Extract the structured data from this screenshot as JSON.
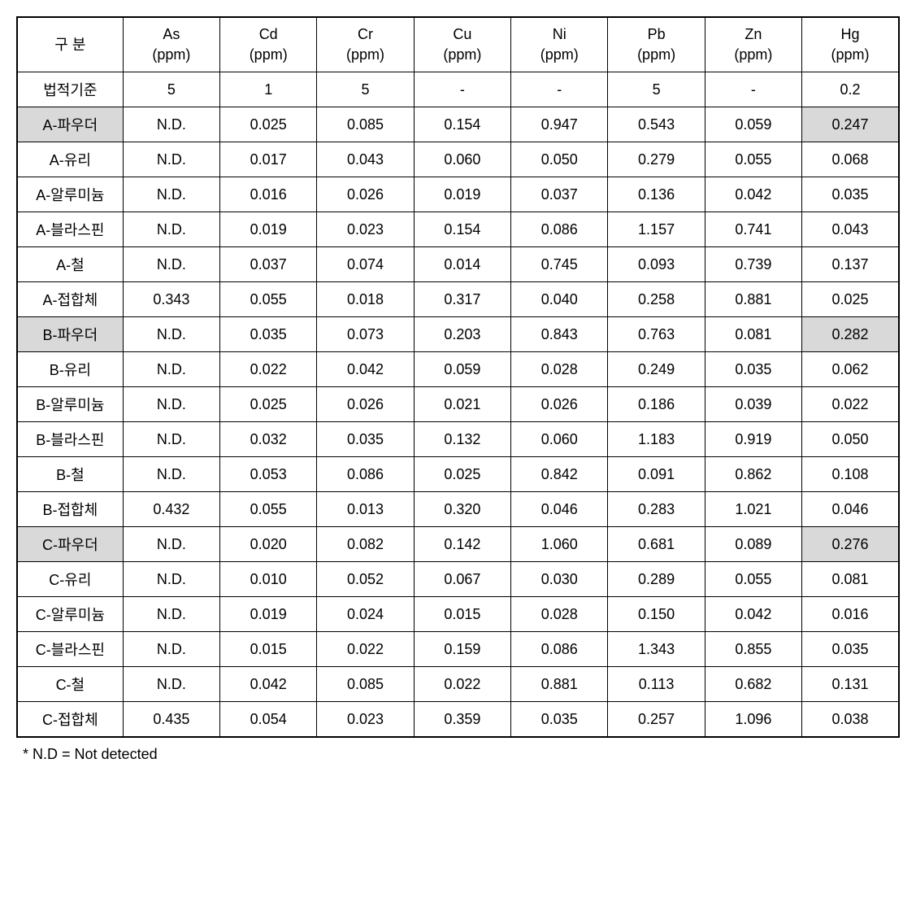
{
  "table": {
    "columns": [
      {
        "key": "label",
        "line1": "구  분",
        "line2": ""
      },
      {
        "key": "as",
        "line1": "As",
        "line2": "(ppm)"
      },
      {
        "key": "cd",
        "line1": "Cd",
        "line2": "(ppm)"
      },
      {
        "key": "cr",
        "line1": "Cr",
        "line2": "(ppm)"
      },
      {
        "key": "cu",
        "line1": "Cu",
        "line2": "(ppm)"
      },
      {
        "key": "ni",
        "line1": "Ni",
        "line2": "(ppm)"
      },
      {
        "key": "pb",
        "line1": "Pb",
        "line2": "(ppm)"
      },
      {
        "key": "zn",
        "line1": "Zn",
        "line2": "(ppm)"
      },
      {
        "key": "hg",
        "line1": "Hg",
        "line2": "(ppm)"
      }
    ],
    "rows": [
      {
        "highlight": [],
        "cells": [
          "법적기준",
          "5",
          "1",
          "5",
          "-",
          "-",
          "5",
          "-",
          "0.2"
        ]
      },
      {
        "highlight": [
          0,
          8
        ],
        "cells": [
          "A-파우더",
          "N.D.",
          "0.025",
          "0.085",
          "0.154",
          "0.947",
          "0.543",
          "0.059",
          "0.247"
        ]
      },
      {
        "highlight": [],
        "cells": [
          "A-유리",
          "N.D.",
          "0.017",
          "0.043",
          "0.060",
          "0.050",
          "0.279",
          "0.055",
          "0.068"
        ]
      },
      {
        "highlight": [],
        "cells": [
          "A-알루미늄",
          "N.D.",
          "0.016",
          "0.026",
          "0.019",
          "0.037",
          "0.136",
          "0.042",
          "0.035"
        ]
      },
      {
        "highlight": [],
        "cells": [
          "A-블라스핀",
          "N.D.",
          "0.019",
          "0.023",
          "0.154",
          "0.086",
          "1.157",
          "0.741",
          "0.043"
        ]
      },
      {
        "highlight": [],
        "cells": [
          "A-철",
          "N.D.",
          "0.037",
          "0.074",
          "0.014",
          "0.745",
          "0.093",
          "0.739",
          "0.137"
        ]
      },
      {
        "highlight": [],
        "cells": [
          "A-접합체",
          "0.343",
          "0.055",
          "0.018",
          "0.317",
          "0.040",
          "0.258",
          "0.881",
          "0.025"
        ]
      },
      {
        "highlight": [
          0,
          8
        ],
        "cells": [
          "B-파우더",
          "N.D.",
          "0.035",
          "0.073",
          "0.203",
          "0.843",
          "0.763",
          "0.081",
          "0.282"
        ]
      },
      {
        "highlight": [],
        "cells": [
          "B-유리",
          "N.D.",
          "0.022",
          "0.042",
          "0.059",
          "0.028",
          "0.249",
          "0.035",
          "0.062"
        ]
      },
      {
        "highlight": [],
        "cells": [
          "B-알루미늄",
          "N.D.",
          "0.025",
          "0.026",
          "0.021",
          "0.026",
          "0.186",
          "0.039",
          "0.022"
        ]
      },
      {
        "highlight": [],
        "cells": [
          "B-블라스핀",
          "N.D.",
          "0.032",
          "0.035",
          "0.132",
          "0.060",
          "1.183",
          "0.919",
          "0.050"
        ]
      },
      {
        "highlight": [],
        "cells": [
          "B-철",
          "N.D.",
          "0.053",
          "0.086",
          "0.025",
          "0.842",
          "0.091",
          "0.862",
          "0.108"
        ]
      },
      {
        "highlight": [],
        "cells": [
          "B-접합체",
          "0.432",
          "0.055",
          "0.013",
          "0.320",
          "0.046",
          "0.283",
          "1.021",
          "0.046"
        ]
      },
      {
        "highlight": [
          0,
          8
        ],
        "cells": [
          "C-파우더",
          "N.D.",
          "0.020",
          "0.082",
          "0.142",
          "1.060",
          "0.681",
          "0.089",
          "0.276"
        ]
      },
      {
        "highlight": [],
        "cells": [
          "C-유리",
          "N.D.",
          "0.010",
          "0.052",
          "0.067",
          "0.030",
          "0.289",
          "0.055",
          "0.081"
        ]
      },
      {
        "highlight": [],
        "cells": [
          "C-알루미늄",
          "N.D.",
          "0.019",
          "0.024",
          "0.015",
          "0.028",
          "0.150",
          "0.042",
          "0.016"
        ]
      },
      {
        "highlight": [],
        "cells": [
          "C-블라스핀",
          "N.D.",
          "0.015",
          "0.022",
          "0.159",
          "0.086",
          "1.343",
          "0.855",
          "0.035"
        ]
      },
      {
        "highlight": [],
        "cells": [
          "C-철",
          "N.D.",
          "0.042",
          "0.085",
          "0.022",
          "0.881",
          "0.113",
          "0.682",
          "0.131"
        ]
      },
      {
        "highlight": [],
        "cells": [
          "C-접합체",
          "0.435",
          "0.054",
          "0.023",
          "0.359",
          "0.035",
          "0.257",
          "1.096",
          "0.038"
        ]
      }
    ]
  },
  "footnote": "*  N.D  =  Not  detected",
  "styling": {
    "border_color": "#000000",
    "highlight_bg": "#d9d9d9",
    "background_color": "#ffffff",
    "font_size": 18,
    "outer_border_width": 2,
    "inner_border_width": 1
  }
}
